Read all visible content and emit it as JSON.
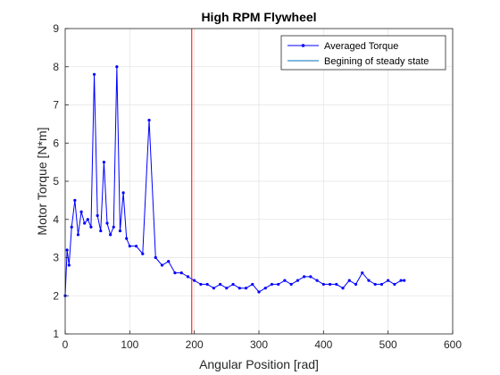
{
  "figure": {
    "background": "#ffffff"
  },
  "chart_data": {
    "type": "line",
    "title": "High RPM Flywheel",
    "xlabel": "Angular Position [rad]",
    "ylabel": "Motor Torque [N*m]",
    "xlim": [
      0,
      600
    ],
    "ylim": [
      1,
      9
    ],
    "xticks": [
      0,
      100,
      200,
      300,
      400,
      500,
      600
    ],
    "yticks": [
      1,
      2,
      3,
      4,
      5,
      6,
      7,
      8,
      9
    ],
    "grid": true,
    "legend_position": "top-right",
    "series": [
      {
        "name": "Averaged Torque",
        "color": "#0000ff",
        "marker": "point",
        "x": [
          0,
          3,
          6,
          10,
          15,
          20,
          25,
          30,
          35,
          40,
          45,
          50,
          55,
          60,
          65,
          70,
          75,
          80,
          85,
          90,
          95,
          100,
          110,
          120,
          130,
          140,
          150,
          160,
          170,
          180,
          190,
          200,
          210,
          220,
          230,
          240,
          250,
          260,
          270,
          280,
          290,
          300,
          310,
          320,
          330,
          340,
          350,
          360,
          370,
          380,
          390,
          400,
          410,
          420,
          430,
          440,
          450,
          460,
          470,
          480,
          490,
          500,
          510,
          520,
          525
        ],
        "y": [
          2.0,
          3.2,
          2.8,
          3.8,
          4.5,
          3.6,
          4.2,
          3.9,
          4.0,
          3.8,
          7.8,
          4.1,
          3.7,
          5.5,
          3.9,
          3.6,
          3.8,
          8.0,
          3.7,
          4.7,
          3.5,
          3.3,
          3.3,
          3.1,
          6.6,
          3.0,
          2.8,
          2.9,
          2.6,
          2.6,
          2.5,
          2.4,
          2.3,
          2.3,
          2.2,
          2.3,
          2.2,
          2.3,
          2.2,
          2.2,
          2.3,
          2.1,
          2.2,
          2.3,
          2.3,
          2.4,
          2.3,
          2.4,
          2.5,
          2.5,
          2.4,
          2.3,
          2.3,
          2.3,
          2.2,
          2.4,
          2.3,
          2.6,
          2.4,
          2.3,
          2.3,
          2.4,
          2.3,
          2.4,
          2.4
        ]
      },
      {
        "name": "Begining of steady state",
        "color": "#ff0000",
        "type": "vline",
        "x": 196
      }
    ]
  }
}
